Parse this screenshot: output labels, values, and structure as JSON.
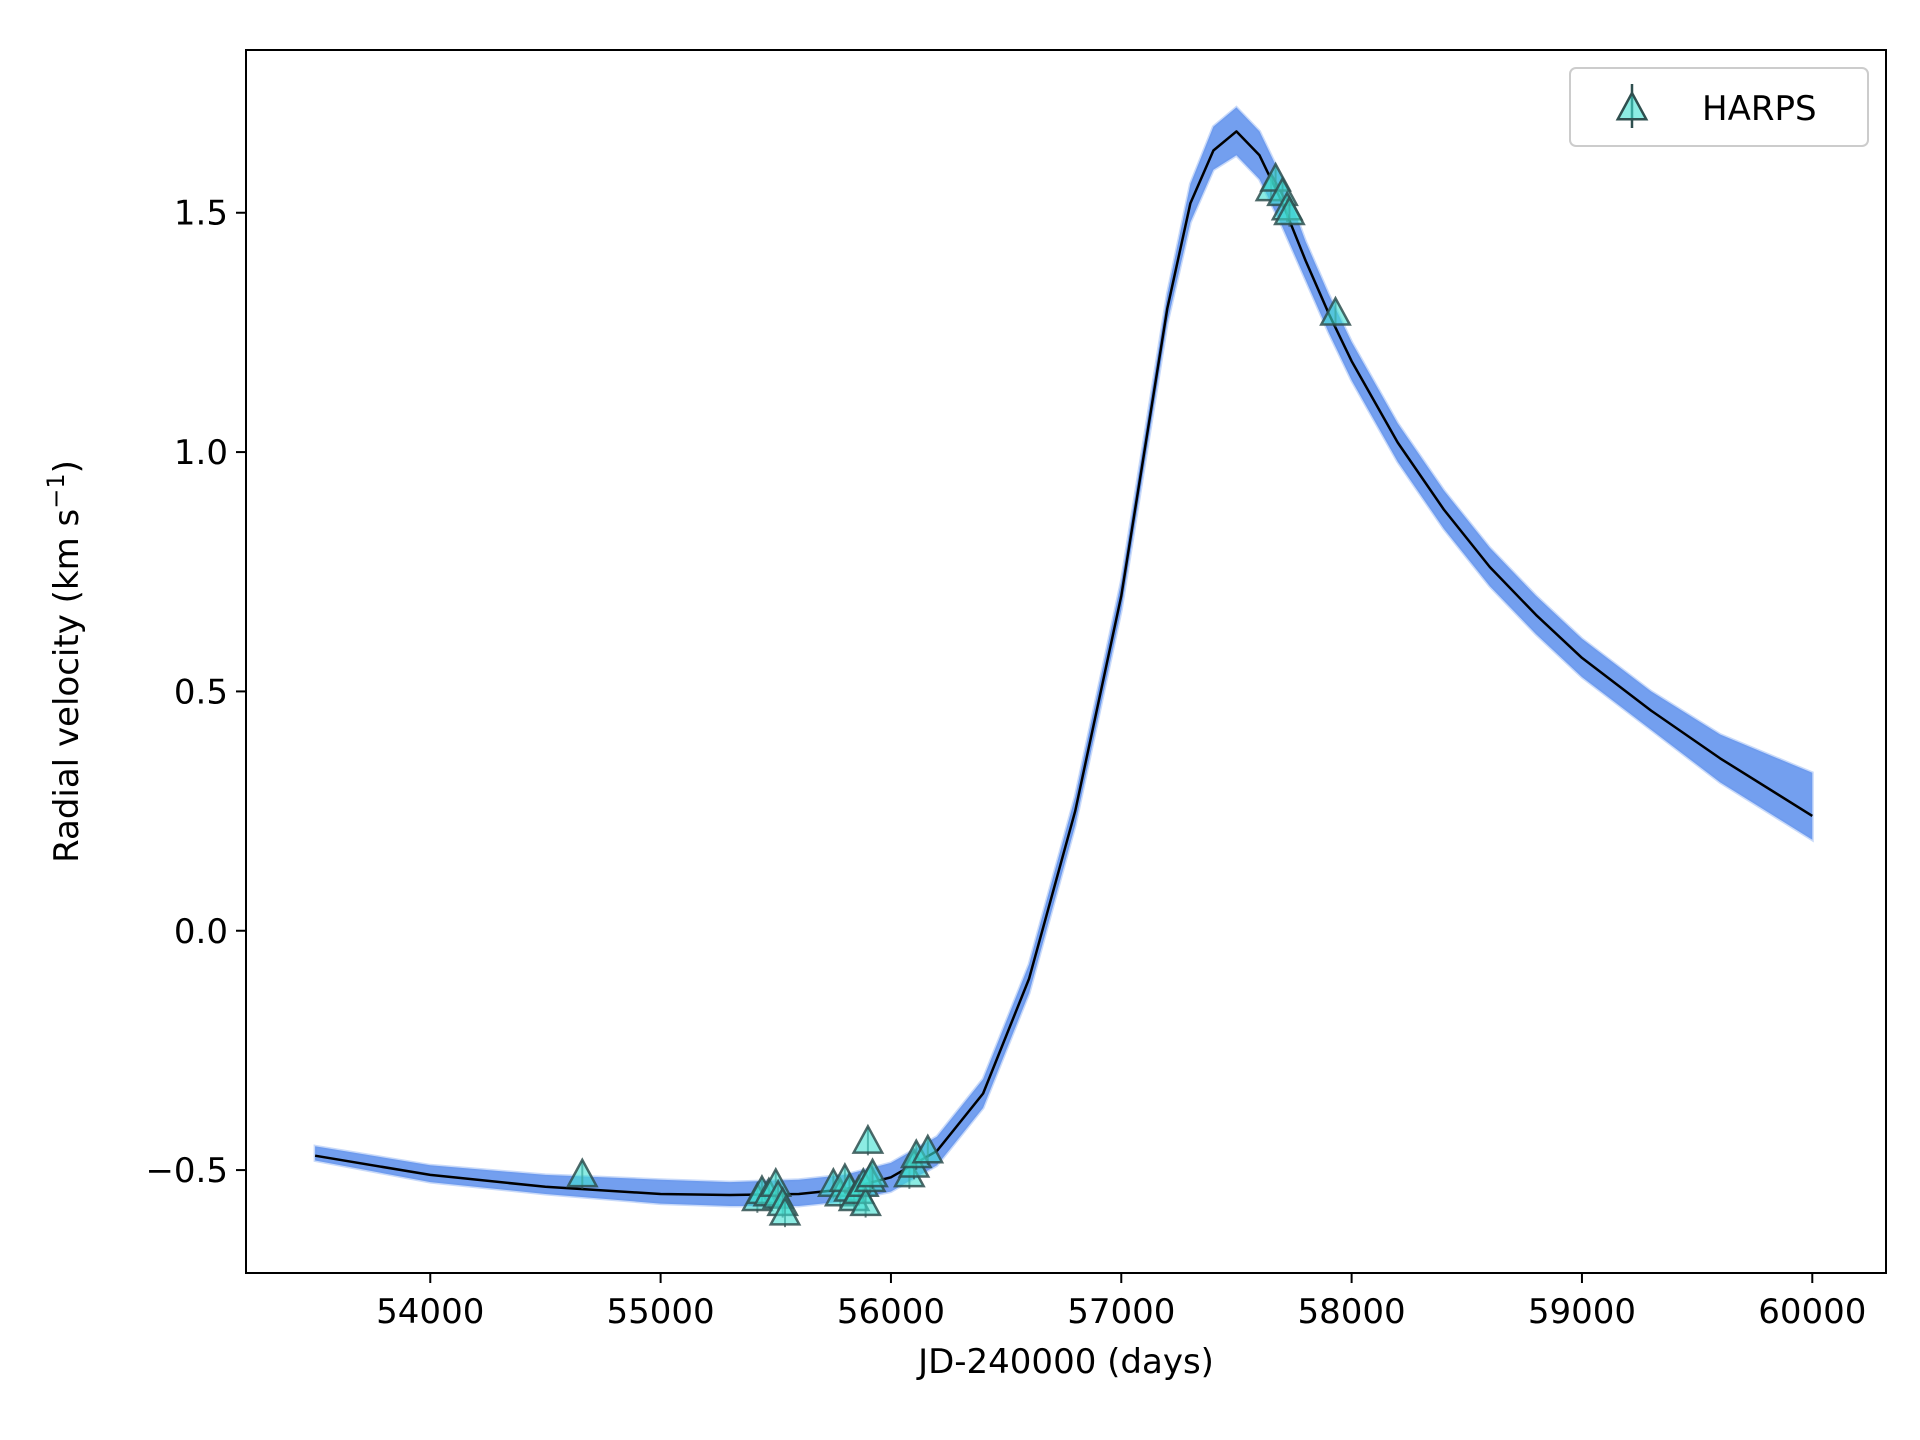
{
  "chart_data": {
    "type": "scatter",
    "xlabel": "JD-240000 (days)",
    "ylabel_main": "Radial velocity (km s",
    "ylabel_sup": "−1",
    "ylabel_close": ")",
    "xlim": [
      53200,
      60320
    ],
    "ylim": [
      -0.715,
      1.84
    ],
    "xticks": [
      54000,
      55000,
      56000,
      57000,
      58000,
      59000,
      60000
    ],
    "xtick_labels": [
      "54000",
      "55000",
      "56000",
      "57000",
      "58000",
      "59000",
      "60000"
    ],
    "yticks": [
      -0.5,
      0.0,
      0.5,
      1.0,
      1.5
    ],
    "ytick_labels": [
      "−0.5",
      "0.0",
      "0.5",
      "1.0",
      "1.5"
    ],
    "grid": false,
    "legend_position": "top-right",
    "legend_label": "HARPS",
    "colors": {
      "model": "#000000",
      "samples": "#6495ed",
      "marker_fill": "#40e0d0",
      "marker_edge": "#2f4f4f"
    },
    "model_curve": {
      "name": "model",
      "x": [
        53500,
        54000,
        54500,
        55000,
        55300,
        55600,
        55800,
        56000,
        56200,
        56400,
        56600,
        56800,
        57000,
        57100,
        57200,
        57300,
        57400,
        57500,
        57600,
        57700,
        57800,
        57900,
        58000,
        58200,
        58400,
        58600,
        58800,
        59000,
        59300,
        59600,
        60000
      ],
      "y": [
        -0.47,
        -0.51,
        -0.535,
        -0.55,
        -0.552,
        -0.55,
        -0.54,
        -0.515,
        -0.46,
        -0.34,
        -0.1,
        0.25,
        0.7,
        1.0,
        1.3,
        1.52,
        1.63,
        1.67,
        1.62,
        1.52,
        1.4,
        1.29,
        1.19,
        1.02,
        0.88,
        0.76,
        0.66,
        0.57,
        0.46,
        0.36,
        0.24
      ]
    },
    "band_upper": [
      -0.45,
      -0.49,
      -0.51,
      -0.52,
      -0.525,
      -0.52,
      -0.51,
      -0.485,
      -0.43,
      -0.31,
      -0.07,
      0.28,
      0.73,
      1.03,
      1.33,
      1.56,
      1.68,
      1.72,
      1.67,
      1.57,
      1.44,
      1.33,
      1.23,
      1.06,
      0.92,
      0.8,
      0.7,
      0.61,
      0.5,
      0.41,
      0.33
    ],
    "band_lower": [
      -0.48,
      -0.525,
      -0.55,
      -0.57,
      -0.575,
      -0.575,
      -0.565,
      -0.545,
      -0.49,
      -0.37,
      -0.13,
      0.22,
      0.67,
      0.97,
      1.27,
      1.48,
      1.59,
      1.62,
      1.57,
      1.47,
      1.36,
      1.25,
      1.15,
      0.98,
      0.84,
      0.72,
      0.62,
      0.53,
      0.42,
      0.31,
      0.19
    ],
    "series": [
      {
        "name": "HARPS",
        "x": [
          54660,
          55420,
          55440,
          55470,
          55500,
          55510,
          55530,
          55540,
          55750,
          55780,
          55800,
          55820,
          55840,
          55860,
          55880,
          55890,
          55900,
          55910,
          55920,
          56080,
          56100,
          56110,
          56160,
          57650,
          57670,
          57700,
          57720,
          57730,
          57930
        ],
        "y": [
          -0.51,
          -0.56,
          -0.545,
          -0.55,
          -0.53,
          -0.555,
          -0.57,
          -0.59,
          -0.53,
          -0.55,
          -0.52,
          -0.54,
          -0.56,
          -0.545,
          -0.53,
          -0.57,
          -0.44,
          -0.52,
          -0.51,
          -0.51,
          -0.49,
          -0.47,
          -0.46,
          1.55,
          1.57,
          1.54,
          1.51,
          1.5,
          1.29
        ]
      }
    ]
  }
}
